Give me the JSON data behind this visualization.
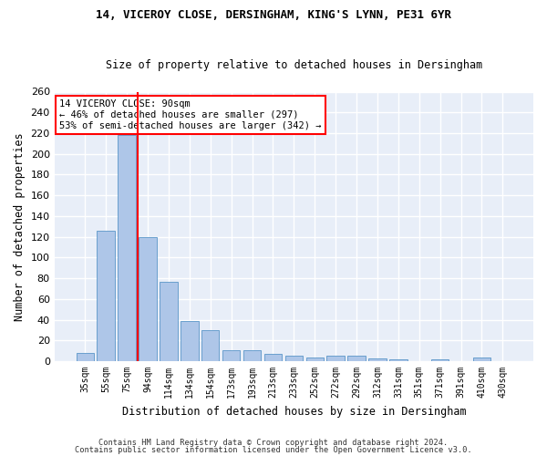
{
  "title1": "14, VICEROY CLOSE, DERSINGHAM, KING'S LYNN, PE31 6YR",
  "title2": "Size of property relative to detached houses in Dersingham",
  "xlabel": "Distribution of detached houses by size in Dersingham",
  "ylabel": "Number of detached properties",
  "footer1": "Contains HM Land Registry data © Crown copyright and database right 2024.",
  "footer2": "Contains public sector information licensed under the Open Government Licence v3.0.",
  "categories": [
    "35sqm",
    "55sqm",
    "75sqm",
    "94sqm",
    "114sqm",
    "134sqm",
    "154sqm",
    "173sqm",
    "193sqm",
    "213sqm",
    "233sqm",
    "252sqm",
    "272sqm",
    "292sqm",
    "312sqm",
    "331sqm",
    "351sqm",
    "371sqm",
    "391sqm",
    "410sqm",
    "430sqm"
  ],
  "values": [
    8,
    126,
    218,
    120,
    77,
    39,
    30,
    11,
    11,
    7,
    5,
    4,
    5,
    5,
    3,
    2,
    0,
    2,
    0,
    4,
    0
  ],
  "bar_color": "#aec6e8",
  "bar_edge_color": "#5a96c8",
  "vline_color": "red",
  "annotation_title": "14 VICEROY CLOSE: 90sqm",
  "annotation_line1": "← 46% of detached houses are smaller (297)",
  "annotation_line2": "53% of semi-detached houses are larger (342) →",
  "annotation_box_color": "white",
  "annotation_box_edge": "red",
  "ylim": [
    0,
    260
  ],
  "yticks": [
    0,
    20,
    40,
    60,
    80,
    100,
    120,
    140,
    160,
    180,
    200,
    220,
    240,
    260
  ],
  "bg_color": "#e8eef8",
  "grid_color": "white",
  "fig_bg_color": "#ffffff"
}
